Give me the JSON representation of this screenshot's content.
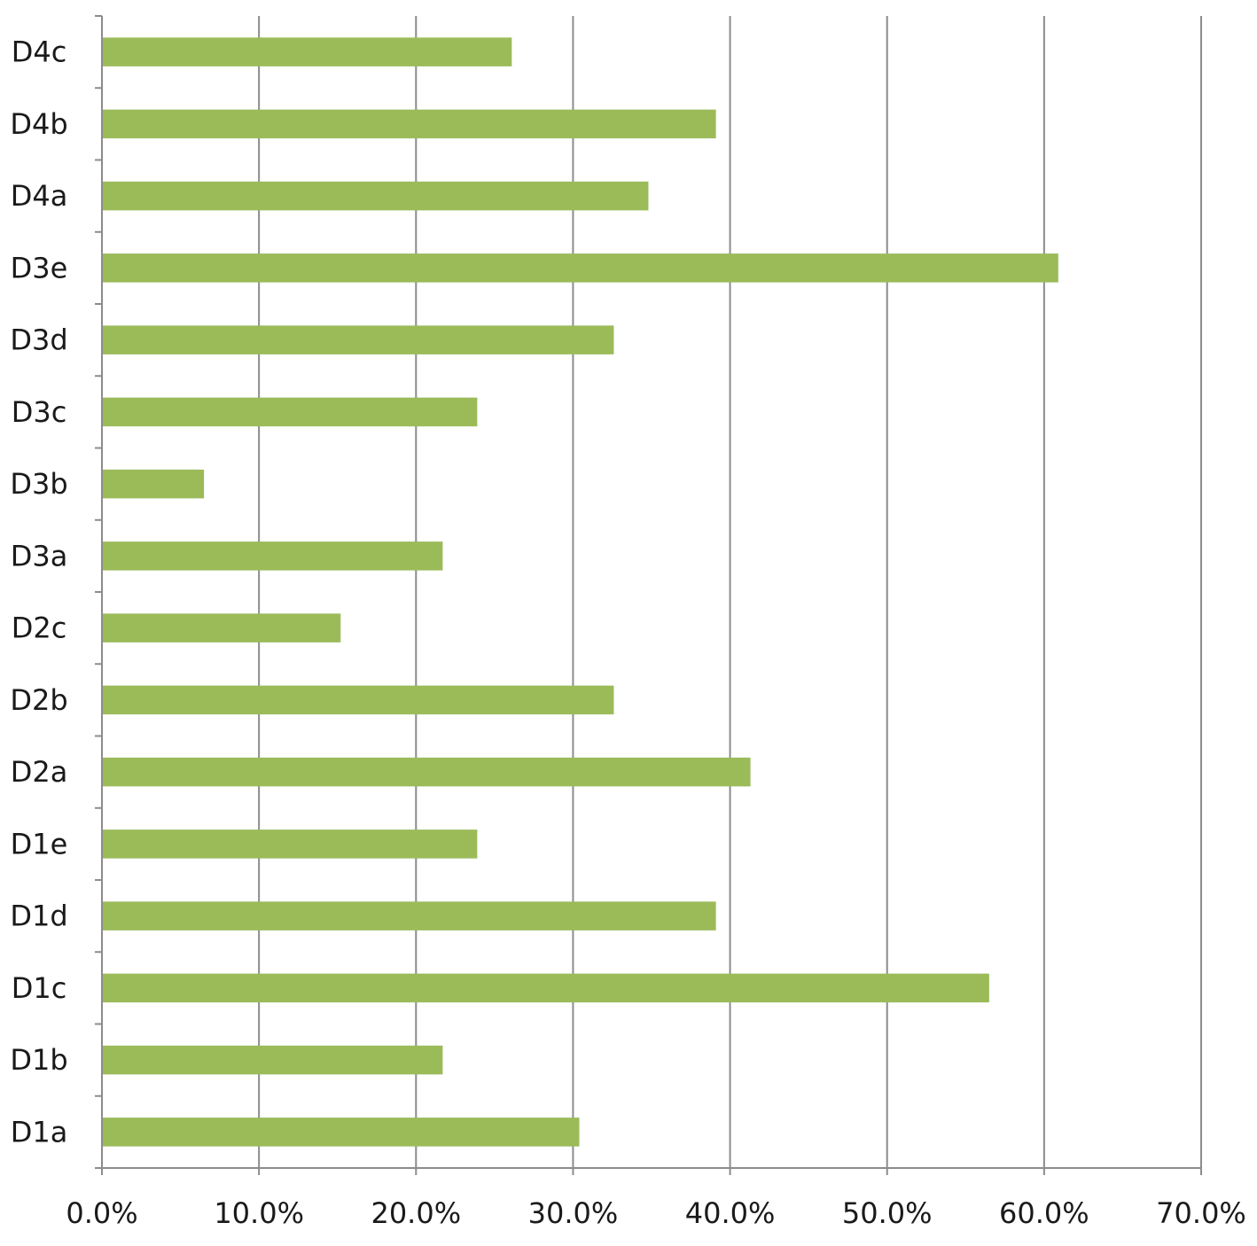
{
  "chart_data": {
    "type": "bar",
    "orientation": "horizontal",
    "categories": [
      "D1a",
      "D1b",
      "D1c",
      "D1d",
      "D1e",
      "D2a",
      "D2b",
      "D2c",
      "D3a",
      "D3b",
      "D3c",
      "D3d",
      "D3e",
      "D4a",
      "D4b",
      "D4c"
    ],
    "values": [
      30.4,
      21.7,
      56.5,
      39.1,
      23.9,
      41.3,
      32.6,
      15.2,
      21.7,
      6.5,
      23.9,
      32.6,
      60.9,
      34.8,
      39.1,
      26.1
    ],
    "xlim": [
      0,
      70
    ],
    "x_ticks": [
      0,
      10,
      20,
      30,
      40,
      50,
      60,
      70
    ],
    "x_tick_labels": [
      "0.0%",
      "10.0%",
      "20.0%",
      "30.0%",
      "40.0%",
      "50.0%",
      "60.0%",
      "70.0%"
    ],
    "grid": "vertical",
    "legend": "none",
    "title": "",
    "xlabel": "",
    "ylabel": "",
    "colors": {
      "bar": "#9bbb59",
      "grid": "#8c8c8c",
      "text": "#1a1a1a"
    }
  }
}
